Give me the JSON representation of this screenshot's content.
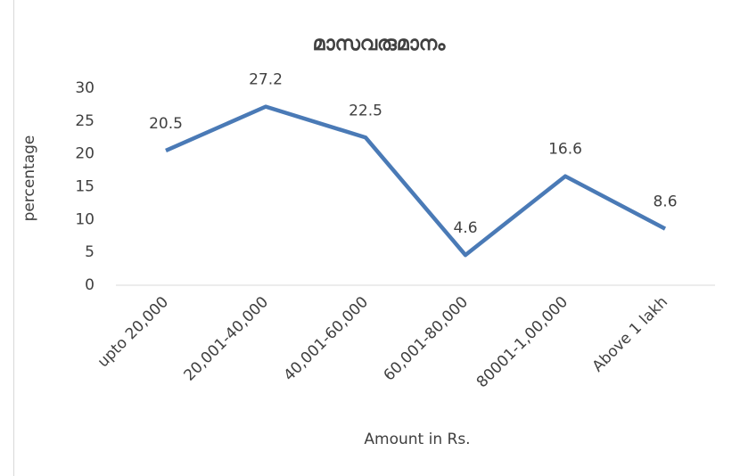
{
  "chart_data": {
    "type": "line",
    "title": "മാസവരുമാനം",
    "x_label": "Amount in Rs.",
    "y_label": "percentage",
    "categories": [
      "upto 20,000",
      "20,001-40,000",
      "40,001-60,000",
      "60,001-80,000",
      "80001-1,00,000",
      "Above 1 lakh"
    ],
    "series": [
      {
        "name": "percentage",
        "color": "#4a7ab6",
        "values": [
          20.5,
          27.2,
          22.5,
          4.6,
          16.6,
          8.6
        ]
      }
    ],
    "ylim": [
      0,
      30
    ],
    "yticks": [
      0,
      5,
      10,
      15,
      20,
      25,
      30
    ],
    "grid": false
  }
}
